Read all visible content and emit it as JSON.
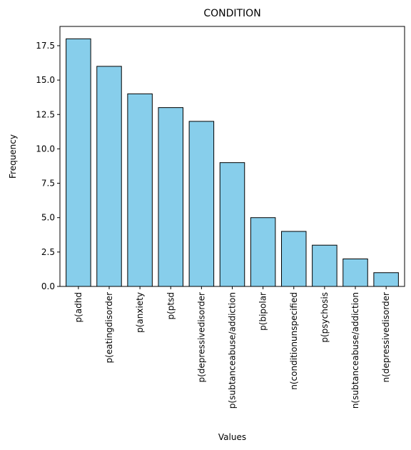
{
  "chart_data": {
    "type": "bar",
    "title": "CONDITION",
    "xlabel": "Values",
    "ylabel": "Frequency",
    "categories": [
      "p(adhd",
      "p(eatingdisorder",
      "p(anxiety",
      "p(ptsd",
      "p(depressivedisorder",
      "p(subtanceabuse/addiction",
      "p(bipolar",
      "n(conditionunspecified",
      "p(psychosis",
      "n(subtanceabuse/addiction",
      "n(depressivedisorder"
    ],
    "values": [
      18,
      16,
      14,
      13,
      12,
      9,
      5,
      4,
      3,
      2,
      1
    ],
    "ylim": [
      0,
      18.9
    ],
    "yticks": [
      "0.0",
      "2.5",
      "5.0",
      "7.5",
      "10.0",
      "12.5",
      "15.0",
      "17.5"
    ],
    "grid": false,
    "bar_color": "#87ceeb",
    "edge_color": "#000000"
  }
}
